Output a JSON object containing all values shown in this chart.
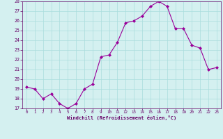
{
  "x": [
    0,
    1,
    2,
    3,
    4,
    5,
    6,
    7,
    8,
    9,
    10,
    11,
    12,
    13,
    14,
    15,
    16,
    17,
    18,
    19,
    20,
    21,
    22,
    23
  ],
  "y": [
    19.2,
    19.0,
    18.0,
    18.5,
    17.5,
    17.0,
    17.5,
    19.0,
    19.5,
    22.3,
    22.5,
    23.8,
    25.8,
    26.0,
    26.5,
    27.5,
    28.0,
    27.5,
    25.2,
    25.2,
    23.5,
    23.2,
    21.0,
    21.2
  ],
  "xlabel": "Windchill (Refroidissement éolien,°C)",
  "ylim": [
    17,
    28
  ],
  "yticks": [
    17,
    18,
    19,
    20,
    21,
    22,
    23,
    24,
    25,
    26,
    27,
    28
  ],
  "xticks": [
    0,
    1,
    2,
    3,
    4,
    5,
    6,
    7,
    8,
    9,
    10,
    11,
    12,
    13,
    14,
    15,
    16,
    17,
    18,
    19,
    20,
    21,
    22,
    23
  ],
  "line_color": "#990099",
  "marker_color": "#990099",
  "bg_color": "#d4f0f0",
  "grid_color": "#aadddd",
  "font_color": "#660066",
  "font_family": "monospace"
}
